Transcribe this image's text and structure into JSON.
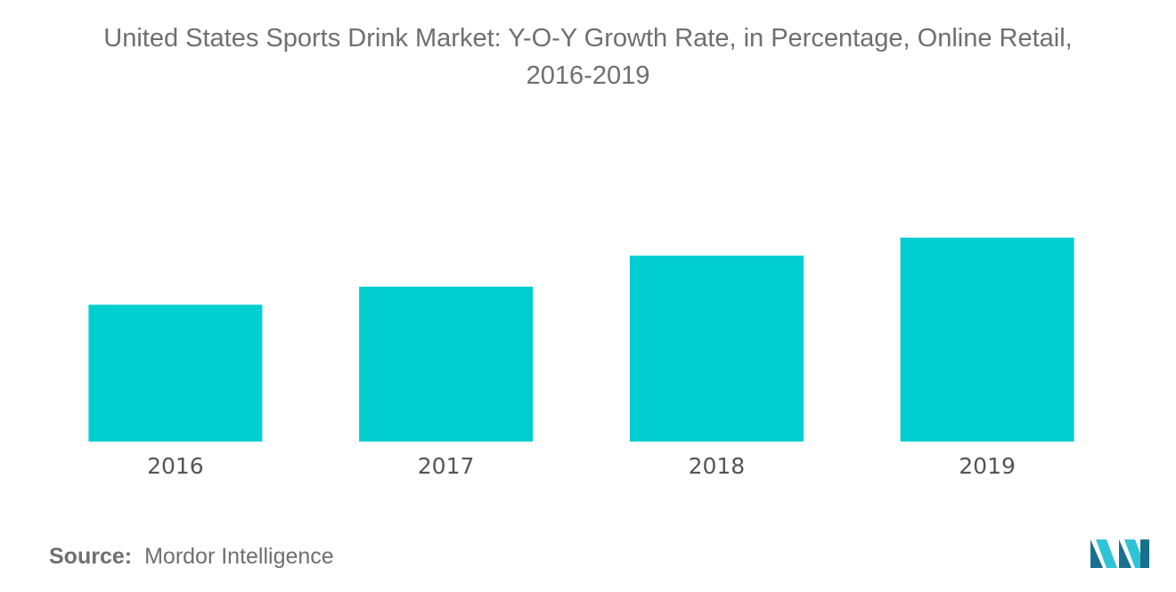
{
  "title_line1": "United States Sports Drink Market: Y-O-Y Growth Rate, in Percentage, Online Retail,",
  "title_line2": "2016-2019",
  "source": {
    "label": "Source:",
    "text": "Mordor Intelligence"
  },
  "chart_data": {
    "type": "bar",
    "title": "United States Sports Drink Market: Y-O-Y Growth Rate, in Percentage, Online Retail, 2016-2019",
    "categories": [
      "2016",
      "2017",
      "2018",
      "2019"
    ],
    "values": [
      5.3,
      6.0,
      7.2,
      7.9
    ],
    "ylim": [
      0,
      10
    ],
    "xlabel": "",
    "ylabel": "",
    "grid": false,
    "bar_color": "#00ced1"
  },
  "colors": {
    "bar": "#00ced1",
    "text": "#6f6f6f",
    "logo_dark": "#1a6f8e",
    "logo_light": "#2ec4d6"
  },
  "logo": {
    "icon": "mordor-intelligence-logo"
  }
}
